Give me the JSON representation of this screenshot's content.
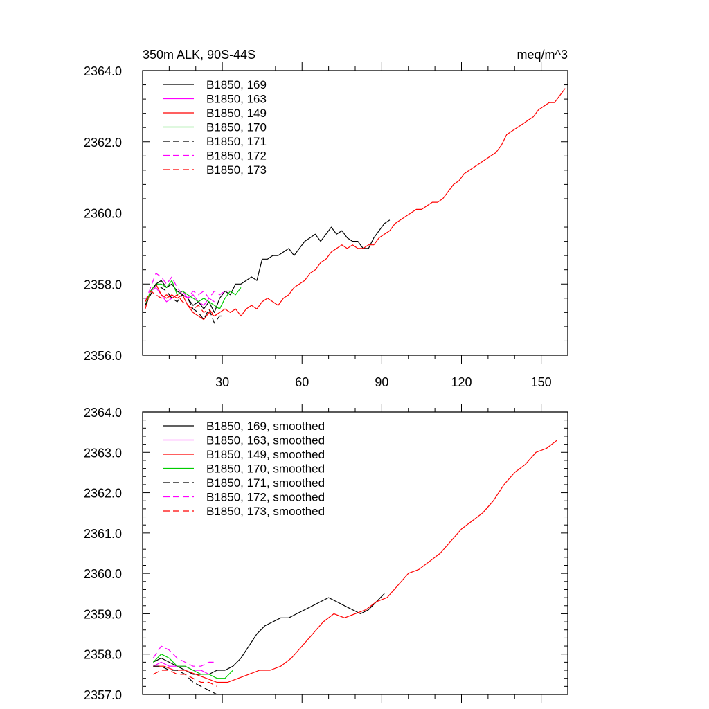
{
  "chart_data": [
    {
      "type": "line",
      "title_left": "350m ALK, 90S-44S",
      "title_right": "meq/m^3",
      "xlim": [
        0,
        160
      ],
      "ylim": [
        2356.0,
        2364.0
      ],
      "x_ticks": [
        30,
        60,
        90,
        120,
        150
      ],
      "y_ticks": [
        2356.0,
        2358.0,
        2360.0,
        2362.0,
        2364.0
      ],
      "y_tick_labels": [
        "2356.0",
        "2358.0",
        "2360.0",
        "2362.0",
        "2364.0"
      ],
      "legend_position": "top-left",
      "series": [
        {
          "name": "B1850, 169",
          "color": "#000000",
          "dash": "solid",
          "x": [
            1,
            3,
            5,
            7,
            9,
            11,
            13,
            15,
            17,
            19,
            21,
            23,
            25,
            27,
            29,
            31,
            33,
            35,
            37,
            39,
            41,
            43,
            45,
            47,
            49,
            51,
            53,
            55,
            57,
            59,
            61,
            63,
            65,
            67,
            69,
            71,
            73,
            75,
            77,
            79,
            81,
            83,
            85,
            87,
            89,
            91,
            93
          ],
          "y": [
            2357.4,
            2357.8,
            2358.0,
            2358.1,
            2357.9,
            2358.0,
            2357.8,
            2357.7,
            2357.6,
            2357.4,
            2357.5,
            2357.3,
            2357.5,
            2357.2,
            2357.6,
            2357.8,
            2357.7,
            2358.0,
            2358.0,
            2358.1,
            2358.2,
            2358.1,
            2358.7,
            2358.7,
            2358.8,
            2358.8,
            2358.9,
            2359.0,
            2358.8,
            2359.0,
            2359.2,
            2359.3,
            2359.4,
            2359.2,
            2359.4,
            2359.6,
            2359.4,
            2359.5,
            2359.3,
            2359.2,
            2359.2,
            2359.0,
            2359.0,
            2359.3,
            2359.5,
            2359.7,
            2359.8
          ]
        },
        {
          "name": "B1850, 163",
          "color": "#ff00ff",
          "dash": "solid",
          "x": [
            1,
            3,
            5,
            7,
            9,
            11,
            13,
            15,
            17,
            19,
            21,
            23,
            25,
            27
          ],
          "y": [
            2357.4,
            2357.8,
            2357.9,
            2357.7,
            2357.5,
            2357.6,
            2357.7,
            2357.8,
            2357.6,
            2357.7,
            2357.5,
            2357.4,
            2357.6,
            2357.5
          ]
        },
        {
          "name": "B1850, 149",
          "color": "#ff0000",
          "dash": "solid",
          "x": [
            1,
            3,
            5,
            7,
            9,
            11,
            13,
            15,
            17,
            19,
            21,
            23,
            25,
            27,
            29,
            31,
            33,
            35,
            37,
            39,
            41,
            43,
            45,
            47,
            49,
            51,
            53,
            55,
            57,
            59,
            61,
            63,
            65,
            67,
            69,
            71,
            73,
            75,
            77,
            79,
            81,
            83,
            85,
            87,
            89,
            91,
            93,
            95,
            97,
            99,
            101,
            103,
            105,
            107,
            109,
            111,
            113,
            115,
            117,
            119,
            121,
            123,
            125,
            127,
            129,
            131,
            133,
            135,
            137,
            139,
            141,
            143,
            145,
            147,
            149,
            151,
            153,
            155,
            157,
            159
          ],
          "y": [
            2357.3,
            2357.8,
            2358.0,
            2357.7,
            2357.6,
            2357.7,
            2357.6,
            2357.7,
            2357.4,
            2357.2,
            2357.1,
            2357.0,
            2357.2,
            2357.1,
            2357.2,
            2357.3,
            2357.2,
            2357.3,
            2357.1,
            2357.3,
            2357.4,
            2357.3,
            2357.5,
            2357.6,
            2357.5,
            2357.4,
            2357.6,
            2357.7,
            2357.9,
            2358.0,
            2358.1,
            2358.3,
            2358.4,
            2358.6,
            2358.7,
            2358.9,
            2359.0,
            2359.1,
            2359.0,
            2359.1,
            2359.0,
            2359.0,
            2359.1,
            2359.1,
            2359.3,
            2359.4,
            2359.5,
            2359.7,
            2359.8,
            2359.9,
            2360.0,
            2360.1,
            2360.1,
            2360.2,
            2360.3,
            2360.3,
            2360.4,
            2360.6,
            2360.8,
            2360.9,
            2361.1,
            2361.2,
            2361.3,
            2361.4,
            2361.5,
            2361.6,
            2361.7,
            2361.9,
            2362.2,
            2362.3,
            2362.4,
            2362.5,
            2362.6,
            2362.7,
            2362.9,
            2363.0,
            2363.1,
            2363.1,
            2363.3,
            2363.5
          ]
        },
        {
          "name": "B1850, 170",
          "color": "#00cc00",
          "dash": "solid",
          "x": [
            1,
            3,
            5,
            7,
            9,
            11,
            13,
            15,
            17,
            19,
            21,
            23,
            25,
            27,
            29,
            31,
            33,
            35,
            37
          ],
          "y": [
            2357.4,
            2357.8,
            2358.0,
            2358.0,
            2357.9,
            2358.1,
            2357.7,
            2357.8,
            2357.7,
            2357.6,
            2357.5,
            2357.6,
            2357.5,
            2357.4,
            2357.3,
            2357.6,
            2357.8,
            2357.7,
            2357.9
          ]
        },
        {
          "name": "B1850, 171",
          "color": "#000000",
          "dash": "dashed",
          "x": [
            1,
            3,
            5,
            7,
            9,
            11,
            13,
            15,
            17,
            19,
            21,
            23,
            25,
            27,
            29,
            31
          ],
          "y": [
            2357.4,
            2357.7,
            2358.0,
            2357.9,
            2357.8,
            2357.6,
            2357.5,
            2357.7,
            2357.6,
            2357.3,
            2357.2,
            2357.0,
            2357.3,
            2356.9,
            2357.1,
            2357.1
          ]
        },
        {
          "name": "B1850, 172",
          "color": "#ff00ff",
          "dash": "dashed",
          "x": [
            1,
            3,
            5,
            7,
            9,
            11,
            13,
            15,
            17,
            19,
            21,
            23,
            25,
            27,
            29,
            31,
            33
          ],
          "y": [
            2357.5,
            2357.9,
            2358.3,
            2358.2,
            2358.0,
            2358.2,
            2357.9,
            2357.7,
            2357.6,
            2357.8,
            2357.7,
            2357.8,
            2357.6,
            2357.8,
            2357.7,
            2357.8,
            2357.8
          ]
        },
        {
          "name": "B1850, 173",
          "color": "#ff0000",
          "dash": "dashed",
          "x": [
            1,
            3,
            5,
            7,
            9,
            11,
            13,
            15,
            17,
            19,
            21,
            23,
            25,
            27,
            29
          ],
          "y": [
            2357.5,
            2357.8,
            2357.7,
            2357.6,
            2357.7,
            2357.6,
            2357.7,
            2357.5,
            2357.4,
            2357.3,
            2357.4,
            2357.2,
            2357.3,
            2357.1,
            2357.2
          ]
        }
      ]
    },
    {
      "type": "line",
      "xlim": [
        0,
        160
      ],
      "ylim": [
        2357.0,
        2364.0
      ],
      "y_ticks": [
        2357.0,
        2358.0,
        2359.0,
        2360.0,
        2361.0,
        2362.0,
        2363.0,
        2364.0
      ],
      "y_tick_labels": [
        "2357.0",
        "2358.0",
        "2359.0",
        "2360.0",
        "2361.0",
        "2362.0",
        "2363.0",
        "2364.0"
      ],
      "legend_position": "top-left",
      "series": [
        {
          "name": "B1850, 169, smoothed",
          "color": "#000000",
          "dash": "solid",
          "x": [
            4,
            7,
            10,
            13,
            16,
            19,
            22,
            25,
            28,
            31,
            34,
            37,
            40,
            43,
            46,
            49,
            52,
            55,
            58,
            61,
            64,
            67,
            70,
            73,
            76,
            79,
            82,
            85,
            88,
            91
          ],
          "y": [
            2357.8,
            2357.9,
            2357.8,
            2357.7,
            2357.6,
            2357.5,
            2357.5,
            2357.5,
            2357.6,
            2357.6,
            2357.7,
            2357.9,
            2358.2,
            2358.5,
            2358.7,
            2358.8,
            2358.9,
            2358.9,
            2359.0,
            2359.1,
            2359.2,
            2359.3,
            2359.4,
            2359.3,
            2359.2,
            2359.1,
            2359.0,
            2359.1,
            2359.3,
            2359.5
          ]
        },
        {
          "name": "B1850, 163, smoothed",
          "color": "#ff00ff",
          "dash": "solid",
          "x": [
            4,
            7,
            10,
            13,
            16,
            19,
            22,
            25
          ],
          "y": [
            2357.7,
            2357.8,
            2357.7,
            2357.7,
            2357.7,
            2357.6,
            2357.6,
            2357.5
          ]
        },
        {
          "name": "B1850, 149, smoothed",
          "color": "#ff0000",
          "dash": "solid",
          "x": [
            4,
            8,
            12,
            16,
            20,
            24,
            28,
            32,
            36,
            40,
            44,
            48,
            52,
            56,
            60,
            64,
            68,
            72,
            76,
            80,
            84,
            88,
            92,
            96,
            100,
            104,
            108,
            112,
            116,
            120,
            124,
            128,
            132,
            136,
            140,
            144,
            148,
            152,
            156
          ],
          "y": [
            2357.7,
            2357.7,
            2357.6,
            2357.6,
            2357.5,
            2357.4,
            2357.3,
            2357.3,
            2357.4,
            2357.5,
            2357.6,
            2357.6,
            2357.7,
            2357.9,
            2358.2,
            2358.5,
            2358.8,
            2359.0,
            2358.9,
            2359.0,
            2359.1,
            2359.3,
            2359.4,
            2359.7,
            2360.0,
            2360.1,
            2360.3,
            2360.5,
            2360.8,
            2361.1,
            2361.3,
            2361.5,
            2361.8,
            2362.2,
            2362.5,
            2362.7,
            2363.0,
            2363.1,
            2363.3
          ]
        },
        {
          "name": "B1850, 170, smoothed",
          "color": "#00cc00",
          "dash": "solid",
          "x": [
            4,
            7,
            10,
            13,
            16,
            19,
            22,
            25,
            28,
            31,
            34
          ],
          "y": [
            2357.8,
            2358.0,
            2357.9,
            2357.7,
            2357.7,
            2357.6,
            2357.5,
            2357.5,
            2357.4,
            2357.4,
            2357.6
          ]
        },
        {
          "name": "B1850, 171, smoothed",
          "color": "#000000",
          "dash": "dashed",
          "x": [
            4,
            7,
            10,
            13,
            16,
            19,
            22,
            25,
            28
          ],
          "y": [
            2357.7,
            2357.7,
            2357.6,
            2357.6,
            2357.5,
            2357.3,
            2357.2,
            2357.1,
            2357.0
          ]
        },
        {
          "name": "B1850, 172, smoothed",
          "color": "#ff00ff",
          "dash": "dashed",
          "x": [
            4,
            7,
            10,
            13,
            16,
            19,
            22,
            25,
            28
          ],
          "y": [
            2357.9,
            2358.2,
            2358.1,
            2357.9,
            2357.8,
            2357.7,
            2357.7,
            2357.8,
            2357.8
          ]
        },
        {
          "name": "B1850, 173, smoothed",
          "color": "#ff0000",
          "dash": "dashed",
          "x": [
            4,
            7,
            10,
            13,
            16,
            19,
            22,
            25,
            28
          ],
          "y": [
            2357.5,
            2357.6,
            2357.6,
            2357.5,
            2357.5,
            2357.4,
            2357.3,
            2357.3,
            2357.2
          ]
        }
      ]
    }
  ]
}
